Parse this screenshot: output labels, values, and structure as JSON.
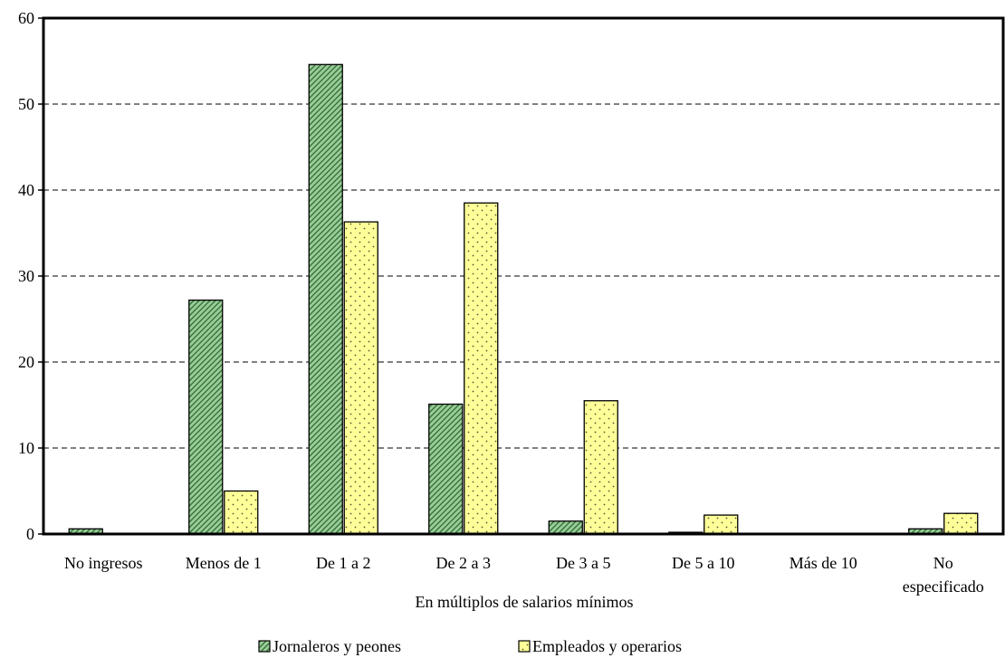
{
  "chart_data": {
    "type": "bar",
    "title": "",
    "xlabel": "En múltiplos de salarios mínimos",
    "ylabel": "",
    "ylim": [
      0,
      60
    ],
    "yticks": [
      0,
      10,
      20,
      30,
      40,
      50,
      60
    ],
    "grid": "horizontal dashed",
    "legend_position": "bottom",
    "categories": [
      [
        "No ingresos"
      ],
      [
        "Menos de 1"
      ],
      [
        "De 1 a 2"
      ],
      [
        "De 2 a 3"
      ],
      [
        "De 3 a 5"
      ],
      [
        "De 5 a 10"
      ],
      [
        "Más de 10"
      ],
      [
        "No",
        "especificado"
      ]
    ],
    "series": [
      {
        "name": "Jornaleros y peones",
        "color": "#99cc99",
        "pattern": "diagonal-hatch",
        "values": [
          0.6,
          27.2,
          54.6,
          15.1,
          1.5,
          0.2,
          0.0,
          0.6
        ]
      },
      {
        "name": "Empleados y operarios",
        "color": "#ffff99",
        "pattern": "dots",
        "values": [
          0.0,
          5.0,
          36.3,
          38.5,
          15.5,
          2.2,
          0.0,
          2.4
        ]
      }
    ]
  }
}
